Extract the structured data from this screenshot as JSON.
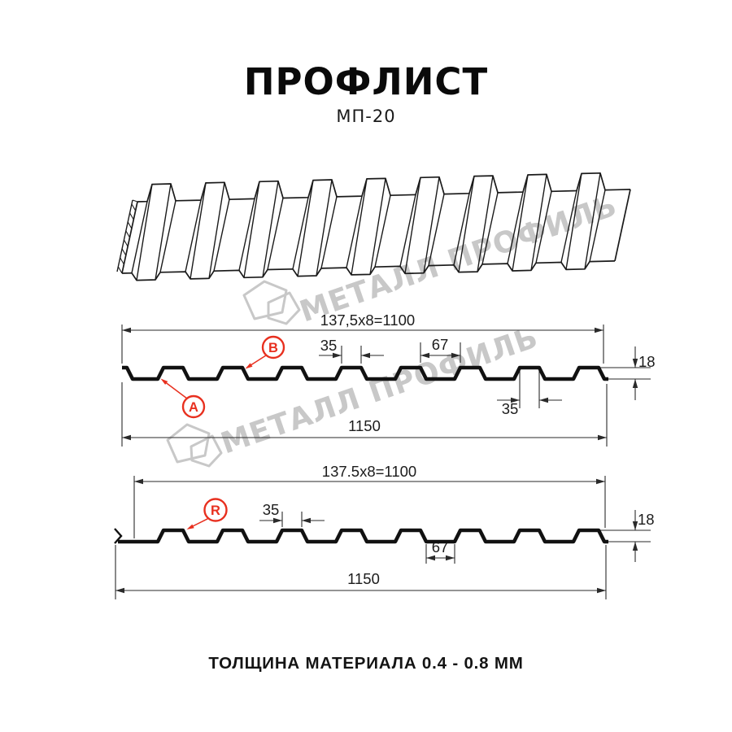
{
  "header": {
    "title": "ПРОФЛИСТ",
    "subtitle": "МП-20"
  },
  "footer": {
    "text": "ТОЛЩИНА МАТЕРИАЛА 0.4 - 0.8 ММ"
  },
  "watermark": {
    "text": "МЕТАЛЛ ПРОФИЛЬ",
    "logo": "metall-profil-logo"
  },
  "colors": {
    "line": "#1a1a1a",
    "profile": "#111111",
    "dim_line": "#2a2a2a",
    "accent_red": "#e8301f",
    "watermark_gray": "#c8c8c8"
  },
  "diagram_top": {
    "name": "profile cross-section side A/B",
    "dim_pitch_formula": "137,5x8=1100",
    "dim_crest_top": "35",
    "dim_trough": "67",
    "dim_height": "18",
    "dim_crest_bottom": "35",
    "dim_overall": "1150",
    "label_a": "A",
    "label_b": "B"
  },
  "diagram_bottom": {
    "name": "profile cross-section side R",
    "dim_pitch_formula": "137.5x8=1100",
    "dim_crest_top": "35",
    "dim_trough": "67",
    "dim_height": "18",
    "dim_overall": "1150",
    "label_r": "R"
  }
}
